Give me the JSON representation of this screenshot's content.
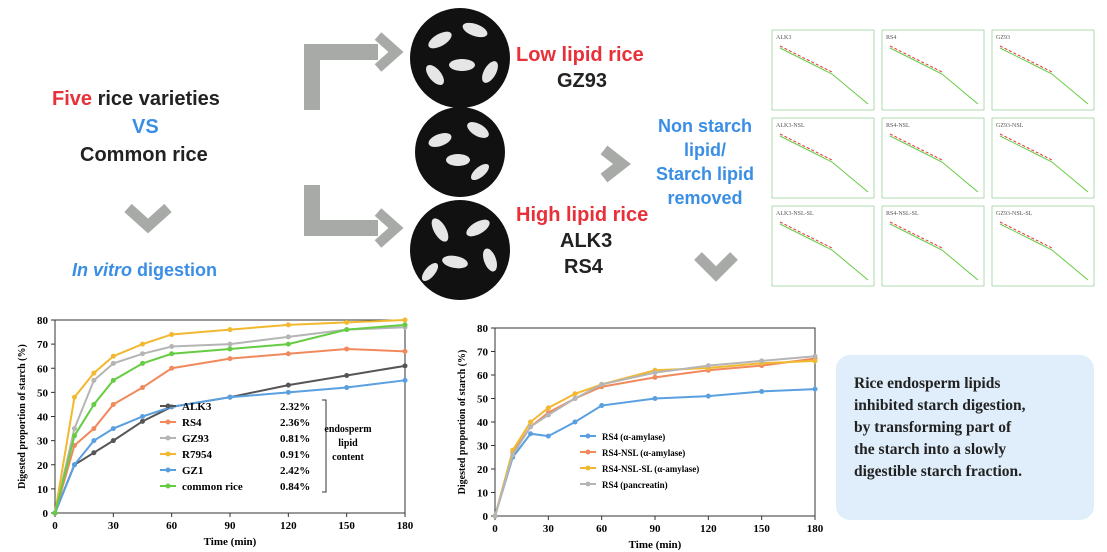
{
  "texts": {
    "left": {
      "five": "Five",
      "varieties": " rice varieties",
      "vs": "VS",
      "common": "Common rice",
      "in_vitro": "In vitro",
      "digestion": " digestion"
    },
    "low": {
      "title": "Low lipid rice",
      "items": [
        "GZ93"
      ]
    },
    "high": {
      "title": "High lipid rice",
      "items": [
        "ALK3",
        "RS4"
      ]
    },
    "removed": [
      "Non starch",
      "lipid/",
      "Starch lipid",
      "removed"
    ],
    "panels": [
      "ALK3",
      "RS4",
      "GZ93",
      "ALK3-NSL",
      "RS4-NSL",
      "GZ93-NSL",
      "ALK3-NSL-SL",
      "RS4-NSL-SL",
      "GZ93-NSL-SL"
    ],
    "conclusion": [
      "Rice endosperm lipids",
      "inhibited starch digestion,",
      "by transforming part of",
      "the starch into a slowly",
      "digestible starch fraction."
    ]
  },
  "chart_data": [
    {
      "type": "line",
      "x_label": "Time (min)",
      "y_label": "Digested proportion of starch (%)",
      "x": [
        0,
        10,
        20,
        30,
        45,
        60,
        90,
        120,
        150,
        180
      ],
      "xlim": [
        0,
        180
      ],
      "xticks": [
        0,
        30,
        60,
        90,
        120,
        150,
        180
      ],
      "ylim": [
        0,
        80
      ],
      "yticks": [
        0,
        10,
        20,
        30,
        40,
        50,
        60,
        70,
        80
      ],
      "series": [
        {
          "name": "ALK3",
          "color": "#555555",
          "values": [
            0,
            20,
            25,
            30,
            38,
            44,
            48,
            53,
            57,
            61
          ]
        },
        {
          "name": "RS4",
          "color": "#f08a5d",
          "values": [
            0,
            28,
            35,
            45,
            52,
            60,
            64,
            66,
            68,
            67
          ]
        },
        {
          "name": "GZ93",
          "color": "#b5b5b5",
          "values": [
            0,
            35,
            55,
            62,
            66,
            69,
            70,
            73,
            76,
            77
          ]
        },
        {
          "name": "R7954",
          "color": "#f2b830",
          "values": [
            0,
            48,
            58,
            65,
            70,
            74,
            76,
            78,
            79,
            80
          ]
        },
        {
          "name": "GZ1",
          "color": "#5aa0e0",
          "values": [
            0,
            20,
            30,
            35,
            40,
            44,
            48,
            50,
            52,
            55
          ]
        },
        {
          "name": "common rice",
          "color": "#66cc44",
          "values": [
            0,
            32,
            45,
            55,
            62,
            66,
            68,
            70,
            76,
            78
          ]
        }
      ],
      "lipid_content": [
        "2.32%",
        "2.36%",
        "0.81%",
        "0.91%",
        "2.42%",
        "0.84%"
      ],
      "legend_note": [
        "endosperm",
        "lipid",
        "content"
      ]
    },
    {
      "type": "line",
      "x_label": "Time (min)",
      "y_label": "Digested proportion of starch (%)",
      "x": [
        0,
        10,
        20,
        30,
        45,
        60,
        90,
        120,
        150,
        180
      ],
      "xlim": [
        0,
        180
      ],
      "xticks": [
        0,
        30,
        60,
        90,
        120,
        150,
        180
      ],
      "ylim": [
        0,
        80
      ],
      "yticks": [
        0,
        10,
        20,
        30,
        40,
        50,
        60,
        70,
        80
      ],
      "series": [
        {
          "name": "RS4 (α-amylase)",
          "color": "#5aa0e0",
          "values": [
            0,
            25,
            35,
            34,
            40,
            47,
            50,
            51,
            53,
            54
          ]
        },
        {
          "name": "RS4-NSL (α-amylase)",
          "color": "#f08a5d",
          "values": [
            0,
            27,
            38,
            44,
            50,
            55,
            59,
            62,
            64,
            67
          ]
        },
        {
          "name": "RS4-NSL-SL (α-amylase)",
          "color": "#f2b830",
          "values": [
            0,
            28,
            40,
            46,
            52,
            56,
            62,
            63,
            65,
            66
          ]
        },
        {
          "name": "RS4 (pancreatin)",
          "color": "#b5b5b5",
          "values": [
            0,
            26,
            38,
            43,
            50,
            56,
            61,
            64,
            66,
            68
          ]
        }
      ]
    }
  ]
}
